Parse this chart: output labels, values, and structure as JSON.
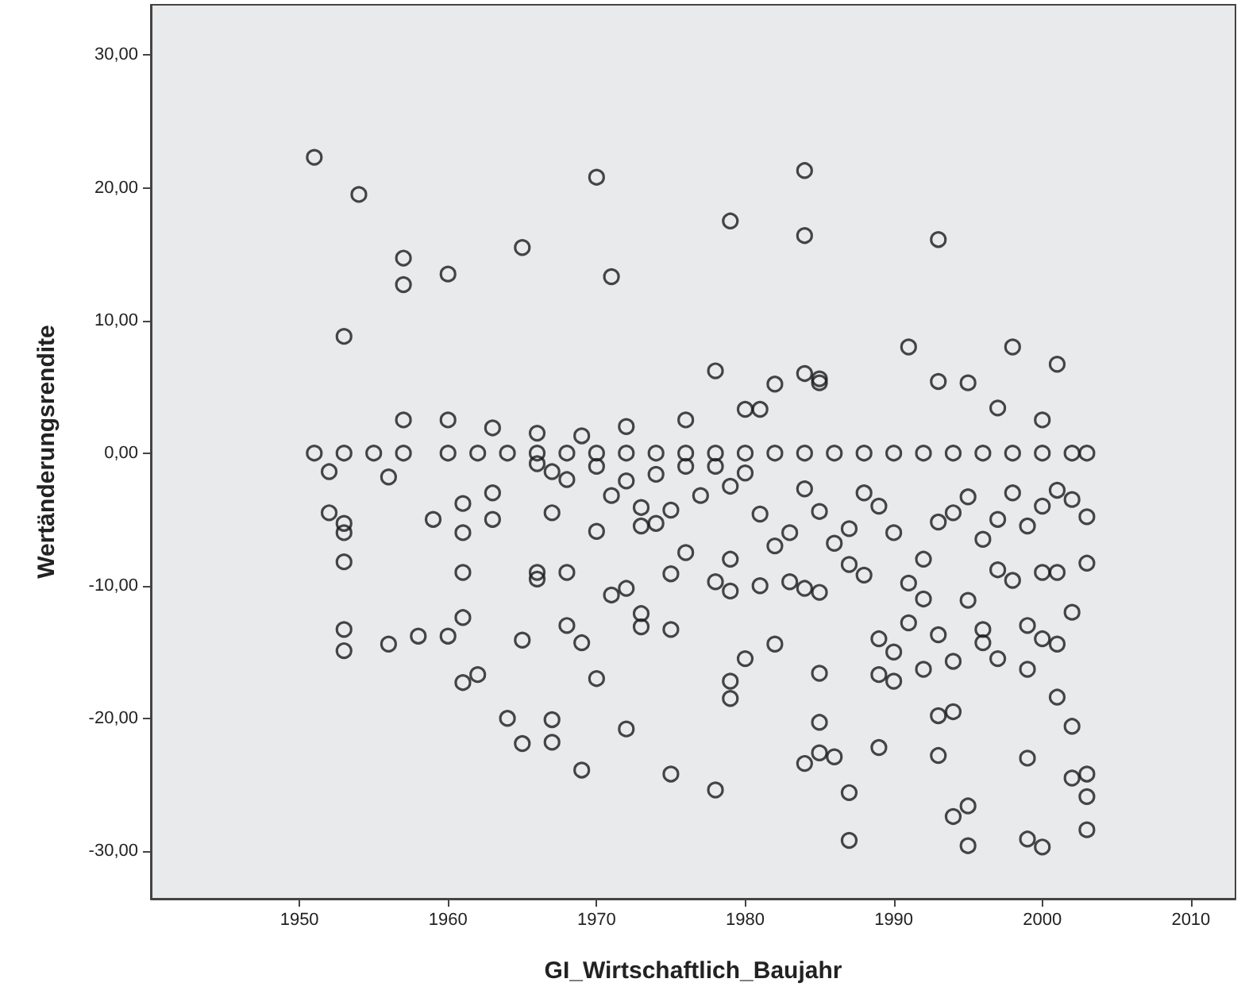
{
  "chart_data": {
    "type": "scatter",
    "xlabel": "GI_Wirtschaftlich_Baujahr",
    "ylabel": "Wertänderungsrendite",
    "marker": "circle",
    "grid": false,
    "xlim": [
      1940,
      2013
    ],
    "xticks": [
      1950,
      1960,
      1970,
      1980,
      1990,
      2000,
      2010
    ],
    "ylim": [
      -33.6,
      33.8
    ],
    "yticks": [
      {
        "value": -30,
        "label": "-30,00"
      },
      {
        "value": -20,
        "label": "-20,00"
      },
      {
        "value": -10,
        "label": "-10,00"
      },
      {
        "value": 0,
        "label": "0,00"
      },
      {
        "value": 10,
        "label": "10,00"
      },
      {
        "value": 20,
        "label": "20,00"
      },
      {
        "value": 30,
        "label": "30,00"
      }
    ],
    "series": [
      {
        "color": "#1a1a1a",
        "x": [
          1951,
          1954,
          1953,
          1957,
          1957,
          1960,
          1965,
          1970,
          1971,
          1979,
          1984,
          1984,
          1993,
          1978,
          1984,
          1985,
          1985,
          1982,
          1991,
          1998,
          2001,
          1993,
          1995,
          1997,
          2000,
          1980,
          1981,
          1976,
          1972,
          1963,
          1960,
          1957,
          1969,
          1966,
          1951,
          1953,
          1955,
          1957,
          1960,
          1962,
          1964,
          1966,
          1968,
          1970,
          1972,
          1974,
          1976,
          1978,
          1980,
          1982,
          1984,
          1986,
          1988,
          1990,
          1992,
          1994,
          1996,
          1998,
          2000,
          2002,
          2003,
          1952,
          1956,
          1959,
          1961,
          1961,
          1963,
          1963,
          1966,
          1967,
          1967,
          1968,
          1970,
          1971,
          1972,
          1973,
          1973,
          1974,
          1974,
          1975,
          1976,
          1977,
          1978,
          1979,
          1980,
          1981,
          1982,
          1983,
          1984,
          1985,
          1986,
          1987,
          1988,
          1989,
          1990,
          1991,
          1992,
          1993,
          1994,
          1995,
          1996,
          1997,
          1998,
          1999,
          2000,
          2001,
          2002,
          2003,
          2003,
          1952,
          1953,
          1953,
          1953,
          1953,
          1953,
          1956,
          1958,
          1960,
          1961,
          1961,
          1961,
          1962,
          1964,
          1965,
          1965,
          1966,
          1966,
          1967,
          1967,
          1968,
          1968,
          1969,
          1969,
          1970,
          1970,
          1971,
          1972,
          1972,
          1973,
          1973,
          1975,
          1975,
          1975,
          1976,
          1978,
          1978,
          1979,
          1979,
          1979,
          1979,
          1980,
          1981,
          1982,
          1983,
          1984,
          1984,
          1985,
          1985,
          1985,
          1985,
          1986,
          1987,
          1987,
          1987,
          1988,
          1989,
          1989,
          1989,
          1990,
          1990,
          1991,
          1992,
          1993,
          1993,
          1993,
          1994,
          1994,
          1994,
          1995,
          1995,
          1995,
          1996,
          1996,
          1997,
          1997,
          1998,
          1999,
          1999,
          1999,
          1999,
          2000,
          2000,
          2000,
          2001,
          2001,
          2002,
          2002,
          2002,
          2003,
          2003,
          2003,
          1992,
          2001
        ],
        "values": [
          22.3,
          19.5,
          8.8,
          14.7,
          12.7,
          13.5,
          15.5,
          20.8,
          13.3,
          17.5,
          21.3,
          16.4,
          16.1,
          6.2,
          6.0,
          5.6,
          5.3,
          5.2,
          8.0,
          8.0,
          6.7,
          5.4,
          5.3,
          3.4,
          2.5,
          3.3,
          3.3,
          2.5,
          2.0,
          1.9,
          2.5,
          2.5,
          1.3,
          1.5,
          0,
          0,
          0,
          0,
          0,
          0,
          0,
          0,
          0,
          0,
          0,
          0,
          0,
          0,
          0,
          0,
          0,
          0,
          0,
          0,
          0,
          0,
          0,
          0,
          0,
          0,
          0,
          -1.4,
          -1.8,
          -5.0,
          -3.8,
          -6.0,
          -3.0,
          -5.0,
          -0.8,
          -1.4,
          -4.5,
          -2.0,
          -1.0,
          -3.2,
          -2.1,
          -4.1,
          -5.5,
          -1.6,
          -5.3,
          -4.3,
          -1.0,
          -3.2,
          -1.0,
          -2.5,
          -1.5,
          -4.6,
          -7.0,
          -6.0,
          -2.7,
          -4.4,
          -6.8,
          -5.7,
          -3.0,
          -4.0,
          -6.0,
          -9.8,
          -8.0,
          -5.2,
          -4.5,
          -3.3,
          -6.5,
          -5.0,
          -3.0,
          -5.5,
          -4.0,
          -2.8,
          -3.5,
          -4.8,
          -8.3,
          -4.5,
          -5.3,
          -6.0,
          -8.2,
          -13.3,
          -14.9,
          -14.4,
          -13.8,
          -13.8,
          -9.0,
          -12.4,
          -17.3,
          -16.7,
          -20.0,
          -14.1,
          -21.9,
          -9.0,
          -9.5,
          -20.1,
          -21.8,
          -9.0,
          -13.0,
          -14.3,
          -23.9,
          -5.9,
          -17.0,
          -10.7,
          -10.2,
          -20.8,
          -12.1,
          -13.1,
          -9.1,
          -13.3,
          -24.2,
          -7.5,
          -9.7,
          -25.4,
          -8.0,
          -10.4,
          -17.2,
          -18.5,
          -15.5,
          -10.0,
          -14.4,
          -9.7,
          -10.2,
          -23.4,
          -10.5,
          -16.6,
          -20.3,
          -22.6,
          -22.9,
          -8.4,
          -25.6,
          -29.2,
          -9.2,
          -14.0,
          -16.7,
          -22.2,
          -15.0,
          -17.2,
          -12.8,
          -11.0,
          -13.7,
          -19.8,
          -22.8,
          -15.7,
          -19.5,
          -27.4,
          -11.1,
          -26.6,
          -29.6,
          -13.3,
          -14.3,
          -15.5,
          -8.8,
          -9.6,
          -13.0,
          -16.3,
          -23.0,
          -29.1,
          -9.0,
          -14.0,
          -29.7,
          -18.4,
          -14.4,
          -12.0,
          -20.6,
          -24.5,
          -24.2,
          -25.9,
          -28.4,
          -16.3,
          -9.0
        ]
      }
    ]
  }
}
